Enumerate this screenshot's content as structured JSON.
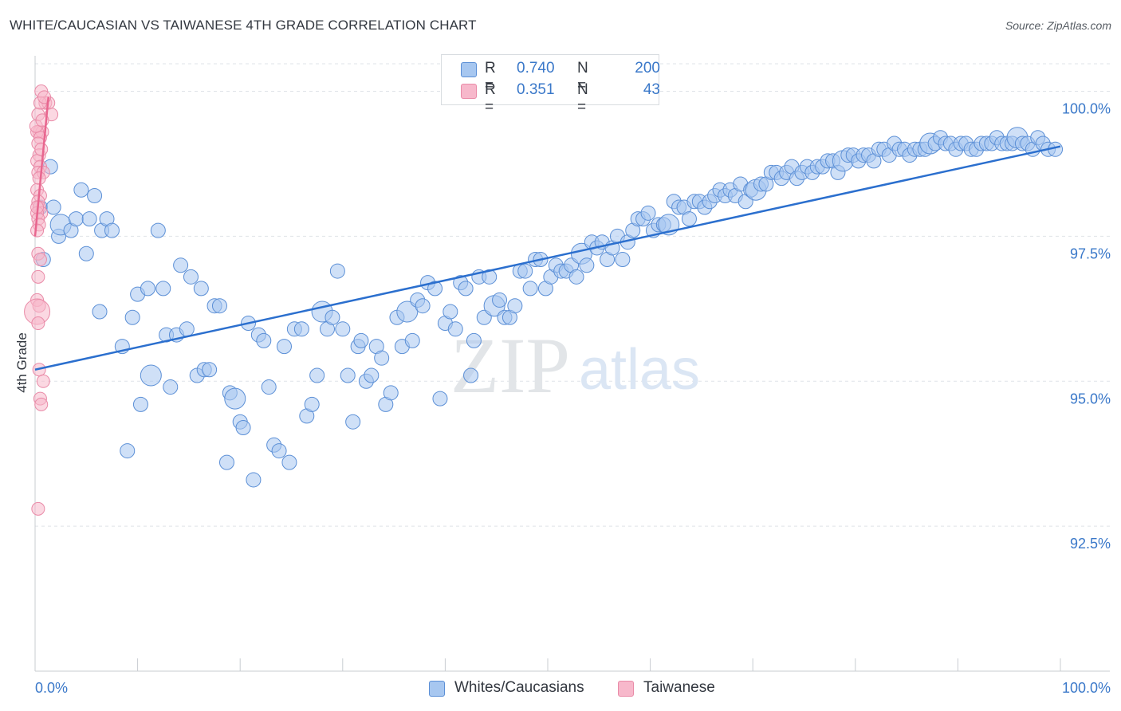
{
  "title": "WHITE/CAUCASIAN VS TAIWANESE 4TH GRADE CORRELATION CHART",
  "source": "Source: ZipAtlas.com",
  "watermark": {
    "zip": "ZIP",
    "atlas": "atlas"
  },
  "legend": {
    "rows": [
      {
        "r_label": "R =",
        "r_value": "0.740",
        "n_label": "N =",
        "n_value": "200",
        "color": "#a7c7f0"
      },
      {
        "r_label": "R =",
        "r_value": "0.351",
        "n_label": "N =",
        "n_value": "43",
        "color": "#f7b8cb"
      }
    ]
  },
  "bottom_legend": [
    {
      "label": "Whites/Caucasians",
      "color": "#a7c7f0"
    },
    {
      "label": "Taiwanese",
      "color": "#f7b8cb"
    }
  ],
  "colors": {
    "blue_fill": "#a7c7f0",
    "blue_stroke": "#5b8fd6",
    "blue_line": "#2b6fce",
    "pink_fill": "#f7b8cb",
    "pink_stroke": "#e98aa7",
    "pink_line": "#e8668f",
    "grid": "#dfe3e8",
    "axis_text": "#3a78c9"
  },
  "chart_data": {
    "type": "scatter",
    "title": "WHITE/CAUCASIAN VS TAIWANESE 4TH GRADE CORRELATION CHART",
    "xlabel": "",
    "ylabel": "4th Grade",
    "xlim": [
      0,
      100
    ],
    "ylim": [
      90,
      100.75
    ],
    "x_tick_labels": [
      "0.0%",
      "100.0%"
    ],
    "y_ticks": [
      {
        "value": 100.0,
        "label": "100.0%"
      },
      {
        "value": 97.5,
        "label": "97.5%"
      },
      {
        "value": 95.0,
        "label": "95.0%"
      },
      {
        "value": 92.5,
        "label": "92.5%"
      }
    ],
    "grid": true,
    "series": [
      {
        "name": "Whites/Caucasians",
        "r": 0.74,
        "n": 200,
        "trend": {
          "x": [
            0,
            100
          ],
          "y": [
            95.2,
            99.05
          ]
        },
        "points": [
          [
            0.5,
            98.0
          ],
          [
            1.5,
            98.7
          ],
          [
            0.8,
            97.1
          ],
          [
            1.8,
            98.0
          ],
          [
            2.3,
            97.5
          ],
          [
            2.5,
            97.7
          ],
          [
            3.5,
            97.6
          ],
          [
            4.0,
            97.8
          ],
          [
            4.5,
            98.3
          ],
          [
            5.0,
            97.2
          ],
          [
            5.3,
            97.8
          ],
          [
            5.8,
            98.2
          ],
          [
            6.5,
            97.6
          ],
          [
            7.0,
            97.8
          ],
          [
            7.5,
            97.6
          ],
          [
            6.3,
            96.2
          ],
          [
            8.5,
            95.6
          ],
          [
            9.0,
            93.8
          ],
          [
            9.5,
            96.1
          ],
          [
            10.0,
            96.5
          ],
          [
            10.3,
            94.6
          ],
          [
            11.0,
            96.6
          ],
          [
            11.3,
            95.1
          ],
          [
            12.0,
            97.6
          ],
          [
            12.5,
            96.6
          ],
          [
            12.8,
            95.8
          ],
          [
            13.2,
            94.9
          ],
          [
            13.8,
            95.8
          ],
          [
            14.2,
            97.0
          ],
          [
            14.8,
            95.9
          ],
          [
            15.2,
            96.8
          ],
          [
            15.8,
            95.1
          ],
          [
            16.2,
            96.6
          ],
          [
            16.5,
            95.2
          ],
          [
            17.0,
            95.2
          ],
          [
            17.5,
            96.3
          ],
          [
            18.0,
            96.3
          ],
          [
            18.7,
            93.6
          ],
          [
            19.0,
            94.8
          ],
          [
            19.5,
            94.7
          ],
          [
            20.0,
            94.3
          ],
          [
            20.3,
            94.2
          ],
          [
            20.8,
            96.0
          ],
          [
            21.3,
            93.3
          ],
          [
            21.8,
            95.8
          ],
          [
            22.3,
            95.7
          ],
          [
            22.8,
            94.9
          ],
          [
            23.3,
            93.9
          ],
          [
            23.8,
            93.8
          ],
          [
            24.3,
            95.6
          ],
          [
            24.8,
            93.6
          ],
          [
            25.3,
            95.9
          ],
          [
            26.0,
            95.9
          ],
          [
            26.5,
            94.4
          ],
          [
            27.0,
            94.6
          ],
          [
            27.5,
            95.1
          ],
          [
            28.0,
            96.2
          ],
          [
            28.5,
            95.9
          ],
          [
            29.0,
            96.1
          ],
          [
            29.5,
            96.9
          ],
          [
            30.0,
            95.9
          ],
          [
            30.5,
            95.1
          ],
          [
            31.0,
            94.3
          ],
          [
            31.5,
            95.6
          ],
          [
            31.8,
            95.7
          ],
          [
            32.3,
            95.0
          ],
          [
            32.8,
            95.1
          ],
          [
            33.3,
            95.6
          ],
          [
            33.8,
            95.4
          ],
          [
            34.2,
            94.6
          ],
          [
            34.7,
            94.8
          ],
          [
            35.3,
            96.1
          ],
          [
            35.8,
            95.6
          ],
          [
            36.3,
            96.2
          ],
          [
            36.8,
            95.7
          ],
          [
            37.3,
            96.4
          ],
          [
            37.8,
            96.3
          ],
          [
            38.3,
            96.7
          ],
          [
            39.0,
            96.6
          ],
          [
            39.5,
            94.7
          ],
          [
            40.0,
            96.0
          ],
          [
            40.5,
            96.2
          ],
          [
            41.0,
            95.9
          ],
          [
            41.5,
            96.7
          ],
          [
            42.0,
            96.6
          ],
          [
            42.5,
            95.1
          ],
          [
            42.8,
            95.7
          ],
          [
            43.3,
            96.8
          ],
          [
            43.8,
            96.1
          ],
          [
            44.3,
            96.8
          ],
          [
            44.8,
            96.3
          ],
          [
            45.3,
            96.4
          ],
          [
            45.8,
            96.1
          ],
          [
            46.3,
            96.1
          ],
          [
            46.8,
            96.3
          ],
          [
            47.3,
            96.9
          ],
          [
            47.8,
            96.9
          ],
          [
            48.3,
            96.6
          ],
          [
            48.8,
            97.1
          ],
          [
            49.3,
            97.1
          ],
          [
            49.8,
            96.6
          ],
          [
            50.3,
            96.8
          ],
          [
            50.8,
            97.0
          ],
          [
            51.3,
            96.9
          ],
          [
            51.8,
            96.9
          ],
          [
            52.3,
            97.0
          ],
          [
            52.8,
            96.8
          ],
          [
            53.3,
            97.2
          ],
          [
            53.8,
            97.0
          ],
          [
            54.3,
            97.4
          ],
          [
            54.8,
            97.3
          ],
          [
            55.3,
            97.4
          ],
          [
            55.8,
            97.1
          ],
          [
            56.3,
            97.3
          ],
          [
            56.8,
            97.5
          ],
          [
            57.3,
            97.1
          ],
          [
            57.8,
            97.4
          ],
          [
            58.3,
            97.6
          ],
          [
            58.8,
            97.8
          ],
          [
            59.3,
            97.8
          ],
          [
            59.8,
            97.9
          ],
          [
            60.3,
            97.6
          ],
          [
            60.8,
            97.7
          ],
          [
            61.3,
            97.7
          ],
          [
            61.8,
            97.7
          ],
          [
            62.3,
            98.1
          ],
          [
            62.8,
            98.0
          ],
          [
            63.3,
            98.0
          ],
          [
            63.8,
            97.8
          ],
          [
            64.3,
            98.1
          ],
          [
            64.8,
            98.1
          ],
          [
            65.3,
            98.0
          ],
          [
            65.8,
            98.1
          ],
          [
            66.3,
            98.2
          ],
          [
            66.8,
            98.3
          ],
          [
            67.3,
            98.2
          ],
          [
            67.8,
            98.3
          ],
          [
            68.3,
            98.2
          ],
          [
            68.8,
            98.4
          ],
          [
            69.3,
            98.1
          ],
          [
            69.8,
            98.3
          ],
          [
            70.3,
            98.3
          ],
          [
            70.8,
            98.4
          ],
          [
            71.3,
            98.4
          ],
          [
            71.8,
            98.6
          ],
          [
            72.3,
            98.6
          ],
          [
            72.8,
            98.5
          ],
          [
            73.3,
            98.6
          ],
          [
            73.8,
            98.7
          ],
          [
            74.3,
            98.5
          ],
          [
            74.8,
            98.6
          ],
          [
            75.3,
            98.7
          ],
          [
            75.8,
            98.6
          ],
          [
            76.3,
            98.7
          ],
          [
            76.8,
            98.7
          ],
          [
            77.3,
            98.8
          ],
          [
            77.8,
            98.8
          ],
          [
            78.3,
            98.6
          ],
          [
            78.8,
            98.8
          ],
          [
            79.3,
            98.9
          ],
          [
            79.8,
            98.9
          ],
          [
            80.3,
            98.8
          ],
          [
            80.8,
            98.9
          ],
          [
            81.3,
            98.9
          ],
          [
            81.8,
            98.8
          ],
          [
            82.3,
            99.0
          ],
          [
            82.8,
            99.0
          ],
          [
            83.3,
            98.9
          ],
          [
            83.8,
            99.1
          ],
          [
            84.3,
            99.0
          ],
          [
            84.8,
            99.0
          ],
          [
            85.3,
            98.9
          ],
          [
            85.8,
            99.0
          ],
          [
            86.3,
            99.0
          ],
          [
            86.8,
            99.0
          ],
          [
            87.3,
            99.1
          ],
          [
            87.8,
            99.1
          ],
          [
            88.3,
            99.2
          ],
          [
            88.8,
            99.1
          ],
          [
            89.3,
            99.1
          ],
          [
            89.8,
            99.0
          ],
          [
            90.3,
            99.1
          ],
          [
            90.8,
            99.1
          ],
          [
            91.3,
            99.0
          ],
          [
            91.8,
            99.0
          ],
          [
            92.3,
            99.1
          ],
          [
            92.8,
            99.1
          ],
          [
            93.3,
            99.1
          ],
          [
            93.8,
            99.2
          ],
          [
            94.3,
            99.1
          ],
          [
            94.8,
            99.1
          ],
          [
            95.3,
            99.1
          ],
          [
            95.8,
            99.2
          ],
          [
            96.3,
            99.1
          ],
          [
            96.8,
            99.1
          ],
          [
            97.3,
            99.0
          ],
          [
            97.8,
            99.2
          ],
          [
            98.3,
            99.1
          ],
          [
            98.8,
            99.0
          ],
          [
            99.5,
            99.0
          ]
        ]
      },
      {
        "name": "Taiwanese",
        "r": 0.351,
        "n": 43,
        "trend": {
          "x": [
            0,
            1.3
          ],
          "y": [
            97.5,
            99.9
          ]
        },
        "points": [
          [
            0.6,
            100.0
          ],
          [
            1.0,
            99.8
          ],
          [
            1.3,
            99.8
          ],
          [
            0.5,
            99.8
          ],
          [
            1.6,
            99.6
          ],
          [
            0.3,
            99.6
          ],
          [
            0.4,
            99.3
          ],
          [
            0.7,
            99.3
          ],
          [
            0.2,
            99.3
          ],
          [
            0.5,
            99.2
          ],
          [
            0.3,
            99.1
          ],
          [
            0.4,
            98.9
          ],
          [
            0.2,
            98.8
          ],
          [
            0.5,
            98.7
          ],
          [
            0.3,
            98.6
          ],
          [
            0.8,
            98.6
          ],
          [
            0.4,
            98.5
          ],
          [
            0.2,
            98.3
          ],
          [
            0.5,
            98.2
          ],
          [
            0.3,
            98.1
          ],
          [
            0.4,
            98.0
          ],
          [
            0.6,
            97.9
          ],
          [
            0.2,
            97.9
          ],
          [
            0.3,
            97.8
          ],
          [
            0.4,
            97.7
          ],
          [
            0.2,
            97.6
          ],
          [
            0.3,
            97.2
          ],
          [
            0.5,
            97.1
          ],
          [
            0.2,
            96.4
          ],
          [
            0.4,
            96.3
          ],
          [
            0.2,
            96.2
          ],
          [
            0.3,
            96.0
          ],
          [
            0.4,
            95.2
          ],
          [
            0.8,
            95.0
          ],
          [
            0.5,
            94.7
          ],
          [
            0.6,
            94.6
          ],
          [
            0.3,
            92.8
          ],
          [
            0.1,
            99.4
          ],
          [
            0.2,
            98.0
          ],
          [
            0.6,
            99.0
          ],
          [
            0.9,
            99.9
          ],
          [
            0.7,
            99.5
          ],
          [
            0.3,
            96.8
          ]
        ]
      }
    ]
  }
}
